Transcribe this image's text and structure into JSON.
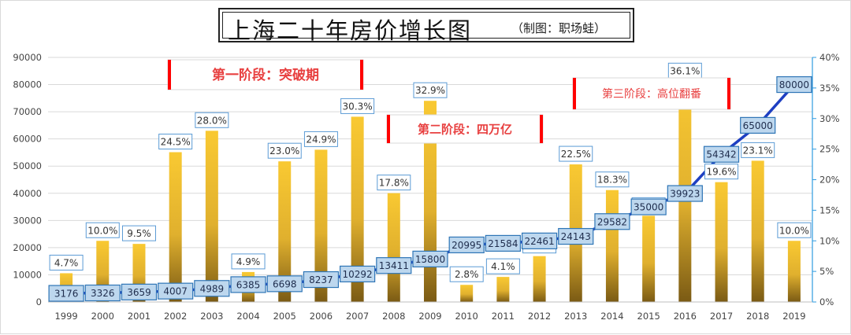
{
  "title": "上海二十年房价增长图",
  "title_note": "（制图：职场蛙）",
  "chart_data": {
    "type": "bar",
    "title": "上海二十年房价增长图",
    "categories": [
      "1999",
      "2000",
      "2001",
      "2002",
      "2003",
      "2004",
      "2005",
      "2006",
      "2007",
      "2008",
      "2009",
      "2010",
      "2011",
      "2012",
      "2013",
      "2014",
      "2015",
      "2016",
      "2017",
      "2018",
      "2019"
    ],
    "series": [
      {
        "type": "bar",
        "axis": "right",
        "values": [
          4.7,
          10.0,
          9.5,
          24.5,
          28.0,
          4.9,
          23.0,
          24.9,
          30.3,
          17.8,
          32.9,
          2.8,
          4.1,
          7.5,
          22.5,
          18.3,
          14.1,
          36.1,
          19.6,
          23.1,
          10.0
        ],
        "labels": [
          "4.7%",
          "10.0%",
          "9.5%",
          "24.5%",
          "28.0%",
          "4.9%",
          "23.0%",
          "24.9%",
          "30.3%",
          "17.8%",
          "32.9%",
          "2.8%",
          "4.1%",
          "7.5%",
          "22.5%",
          "18.3%",
          "14.1%",
          "36.1%",
          "19.6%",
          "23.1%",
          "10.0%"
        ]
      },
      {
        "type": "line",
        "axis": "left",
        "values": [
          3176,
          3326,
          3659,
          4007,
          4989,
          6385,
          6698,
          8237,
          10292,
          13411,
          15800,
          20995,
          21584,
          22461,
          24143,
          29582,
          35000,
          39923,
          54342,
          65000,
          80000
        ],
        "labels": [
          "3176",
          "3326",
          "3659",
          "4007",
          "4989",
          "6385",
          "6698",
          "8237",
          "10292",
          "13411",
          "15800",
          "20995",
          "21584",
          "22461",
          "24143",
          "29582",
          "35000",
          "39923",
          "54342",
          "65000",
          "80000"
        ]
      }
    ],
    "y_left": {
      "min": 0,
      "max": 90000,
      "ticks": [
        "0",
        "10000",
        "20000",
        "30000",
        "40000",
        "50000",
        "60000",
        "70000",
        "80000",
        "90000"
      ]
    },
    "y_right": {
      "min": 0,
      "max": 40,
      "ticks": [
        "0%",
        "5%",
        "10%",
        "15%",
        "20%",
        "25%",
        "30%",
        "35%",
        "40%"
      ]
    },
    "grid": true,
    "annotations": [
      {
        "text": "第一阶段：突破期",
        "year": "2002"
      },
      {
        "text": "第二阶段：四万亿",
        "year": "2010"
      },
      {
        "text": "第三阶段：高位翻番",
        "year": "2016"
      }
    ],
    "colors": {
      "bar_top": "#f9c932",
      "bar_bottom": "#7a5a14",
      "line": "#1e3fc2",
      "marker": "#ed7d31",
      "label_fill": "#bdd7ee",
      "label_stroke": "#2e75b6",
      "annotation": "#ff0000",
      "right_axis": "#2e9be0"
    }
  }
}
